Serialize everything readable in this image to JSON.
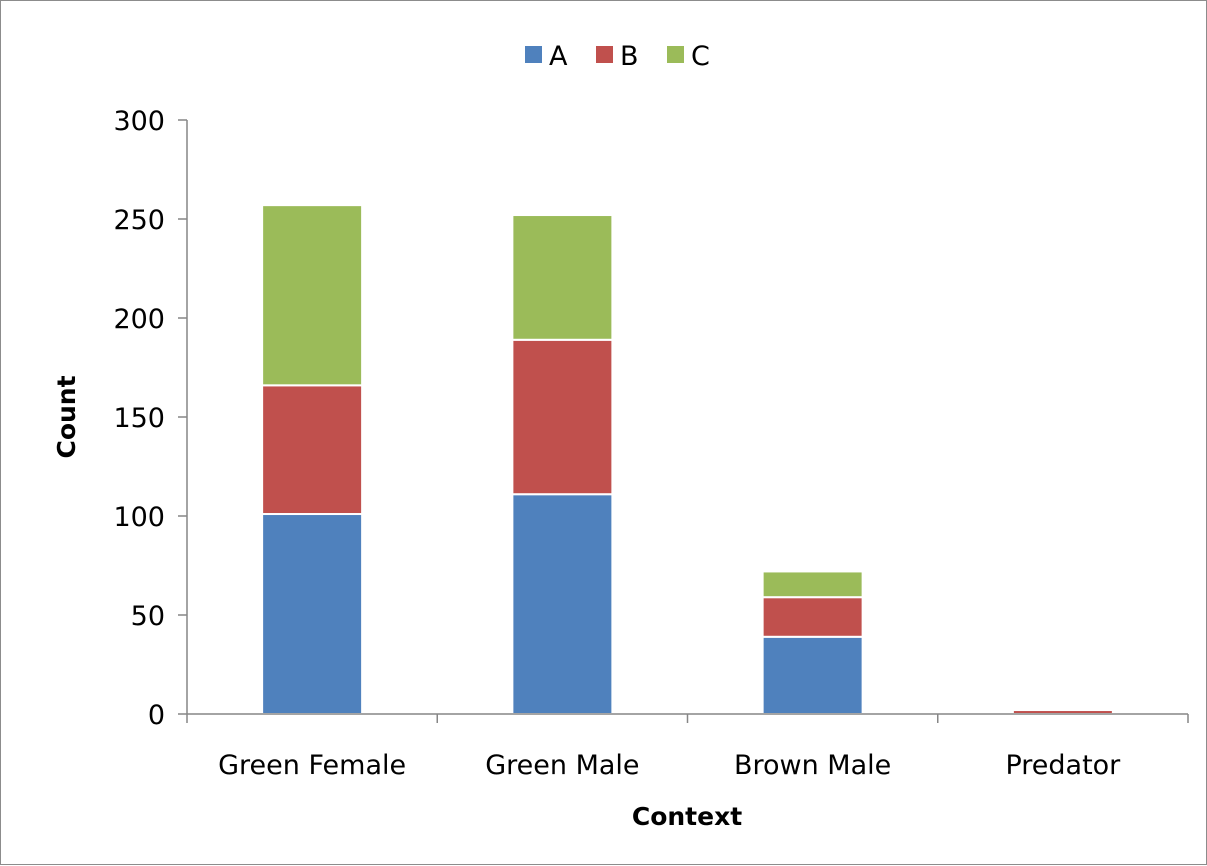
{
  "chart_data": {
    "type": "bar",
    "stacked": true,
    "categories": [
      "Green Female",
      "Green Male",
      "Brown Male",
      "Predator"
    ],
    "series": [
      {
        "name": "A",
        "color": "#4f81bd",
        "values": [
          101,
          111,
          39,
          0
        ]
      },
      {
        "name": "B",
        "color": "#c0504d",
        "values": [
          65,
          78,
          20,
          2
        ]
      },
      {
        "name": "C",
        "color": "#9bbb59",
        "values": [
          91,
          63,
          13,
          0
        ]
      }
    ],
    "xlabel": "Context",
    "ylabel": "Count",
    "ylim": [
      0,
      300
    ],
    "yticks": [
      0,
      50,
      100,
      150,
      200,
      250,
      300
    ],
    "grid": false,
    "legend": "top"
  }
}
